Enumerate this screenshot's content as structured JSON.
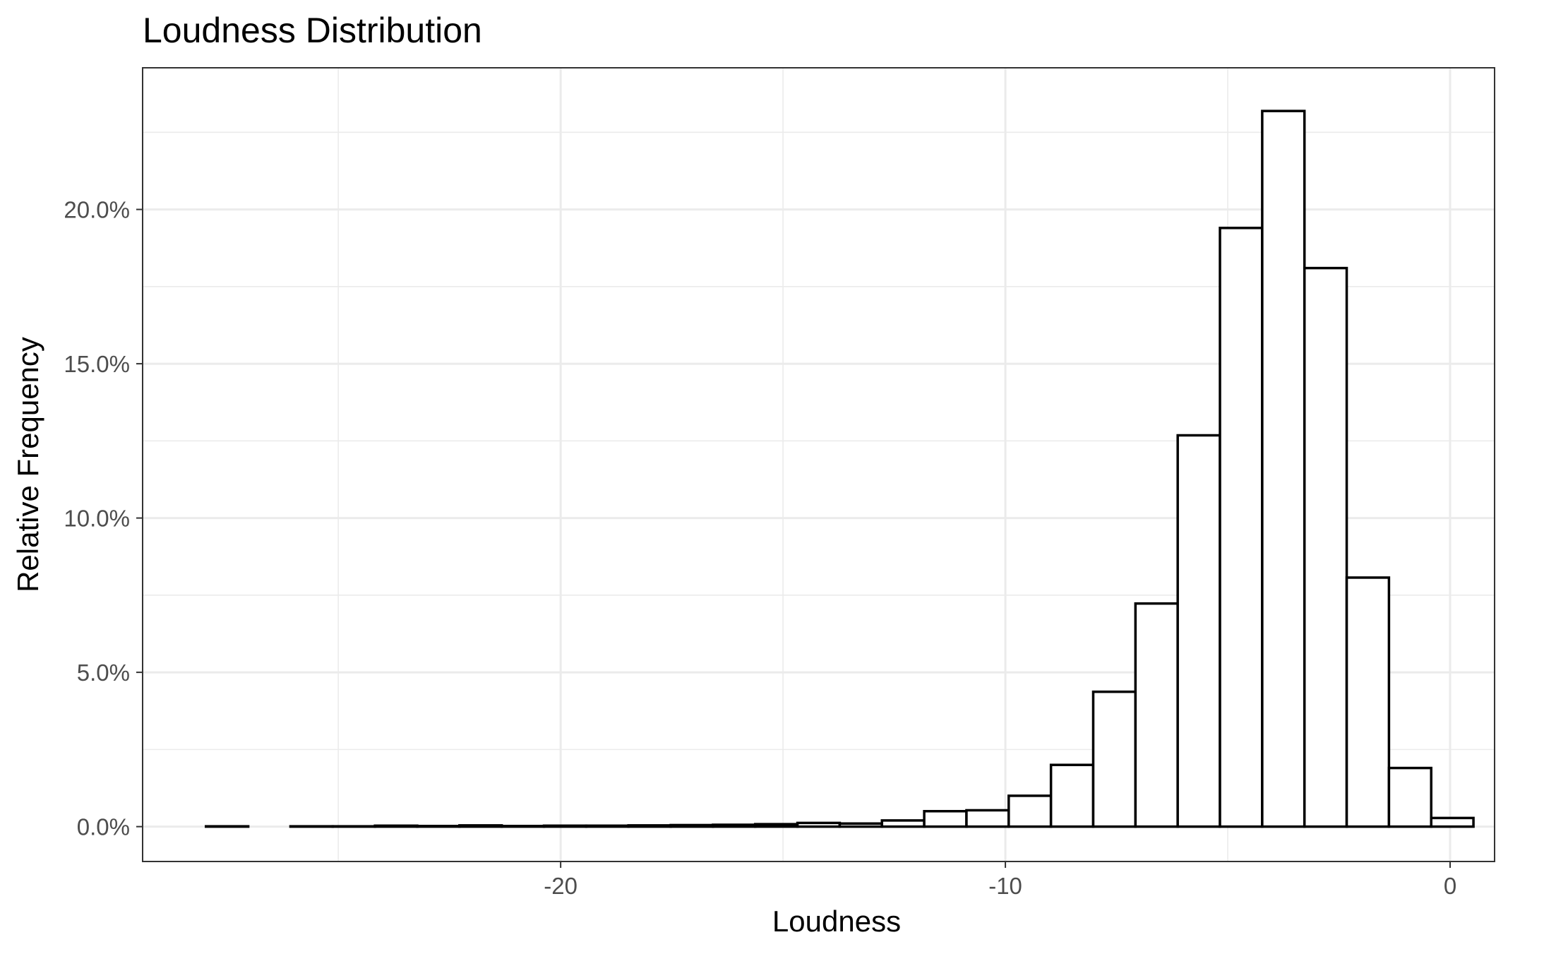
{
  "chart_data": {
    "type": "bar",
    "title": "Loudness Distribution",
    "xlabel": "Loudness",
    "ylabel": "Relative Frequency",
    "xlim": [
      -29.4,
      1.0
    ],
    "ylim": [
      -0.0113,
      0.2459
    ],
    "x_ticks": [
      {
        "value": -20,
        "label": "-20"
      },
      {
        "value": -10,
        "label": "-10"
      },
      {
        "value": 0,
        "label": "0"
      }
    ],
    "y_ticks": [
      {
        "value": 0.0,
        "label": "0.0%"
      },
      {
        "value": 0.05,
        "label": "5.0%"
      },
      {
        "value": 0.1,
        "label": "10.0%"
      },
      {
        "value": 0.15,
        "label": "15.0%"
      },
      {
        "value": 0.2,
        "label": "20.0%"
      }
    ],
    "grid": true,
    "bin_width": 0.95,
    "bins": [
      {
        "x": -27.5,
        "value": 0.0001
      },
      {
        "x": -26.55,
        "value": 0.0
      },
      {
        "x": -25.6,
        "value": 0.0001
      },
      {
        "x": -24.65,
        "value": 0.0001
      },
      {
        "x": -23.7,
        "value": 0.0003
      },
      {
        "x": -22.75,
        "value": 0.0002
      },
      {
        "x": -21.8,
        "value": 0.0004
      },
      {
        "x": -20.85,
        "value": 0.0002
      },
      {
        "x": -19.9,
        "value": 0.0003
      },
      {
        "x": -18.95,
        "value": 0.0003
      },
      {
        "x": -18.0,
        "value": 0.0004
      },
      {
        "x": -17.05,
        "value": 0.0005
      },
      {
        "x": -16.1,
        "value": 0.0006
      },
      {
        "x": -15.15,
        "value": 0.0008
      },
      {
        "x": -14.2,
        "value": 0.0012
      },
      {
        "x": -13.25,
        "value": 0.001
      },
      {
        "x": -12.3,
        "value": 0.002
      },
      {
        "x": -11.35,
        "value": 0.005
      },
      {
        "x": -10.4,
        "value": 0.0053
      },
      {
        "x": -9.45,
        "value": 0.01
      },
      {
        "x": -8.5,
        "value": 0.02
      },
      {
        "x": -7.55,
        "value": 0.0437
      },
      {
        "x": -6.6,
        "value": 0.0723
      },
      {
        "x": -5.65,
        "value": 0.1268
      },
      {
        "x": -4.7,
        "value": 0.194
      },
      {
        "x": -3.75,
        "value": 0.2319
      },
      {
        "x": -2.8,
        "value": 0.181
      },
      {
        "x": -1.85,
        "value": 0.0807
      },
      {
        "x": -0.9,
        "value": 0.019
      },
      {
        "x": 0.05,
        "value": 0.0028
      }
    ]
  }
}
